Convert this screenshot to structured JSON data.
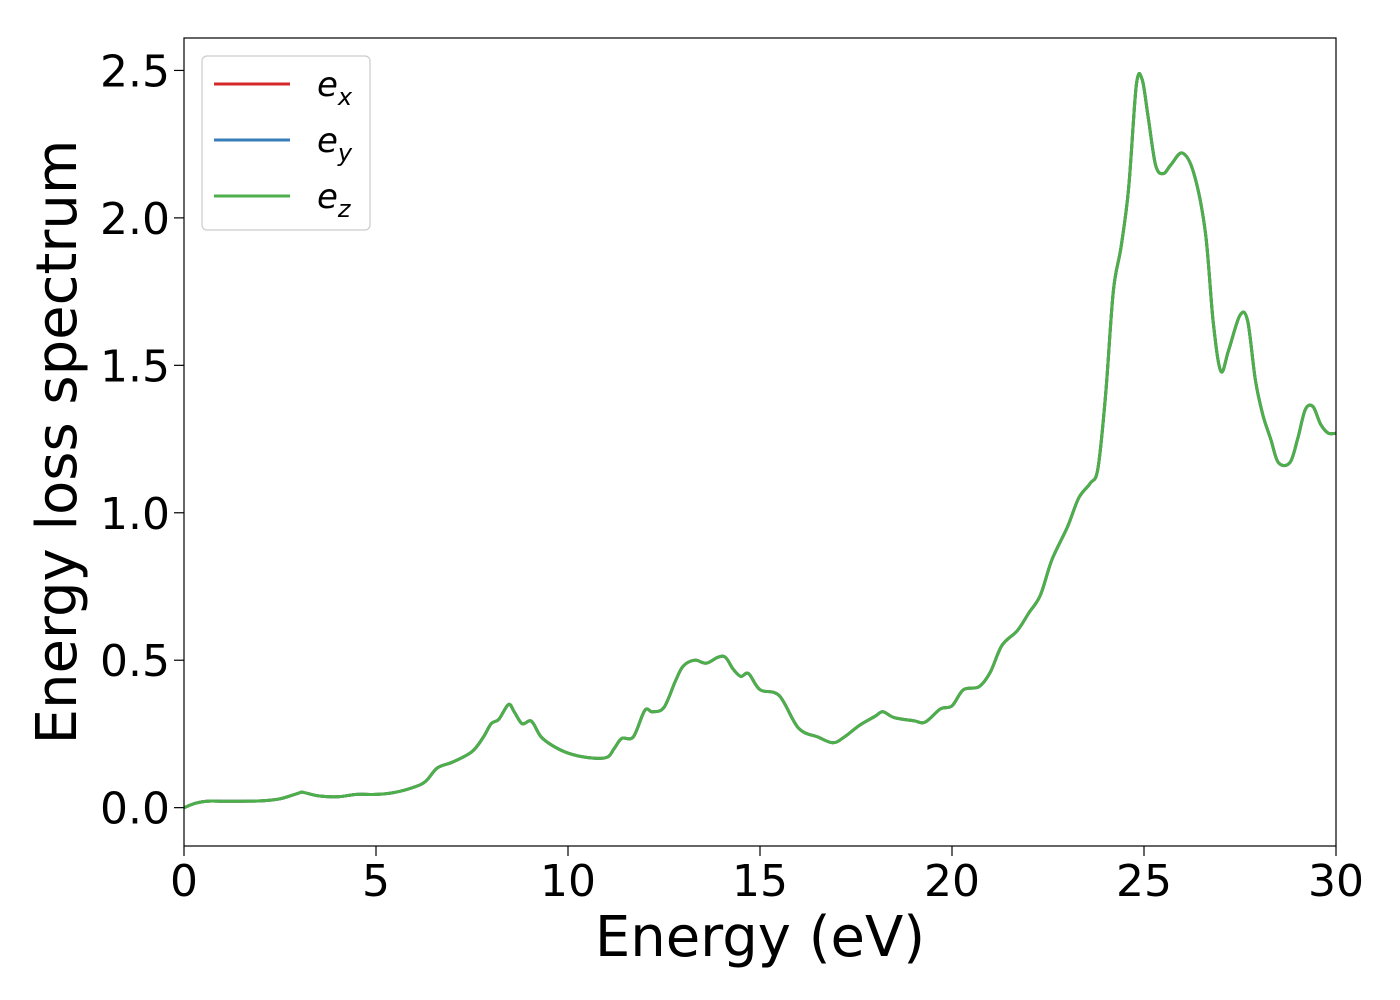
{
  "chart_data": {
    "type": "line",
    "title": "",
    "xlabel": "Energy (eV)",
    "ylabel": "Energy loss spectrum",
    "xlim": [
      0,
      30
    ],
    "ylim": [
      -0.13,
      2.61
    ],
    "xticks": [
      0,
      5,
      10,
      15,
      20,
      25,
      30
    ],
    "xtick_labels": [
      "0",
      "5",
      "10",
      "15",
      "20",
      "25",
      "30"
    ],
    "yticks": [
      0.0,
      0.5,
      1.0,
      1.5,
      2.0,
      2.5
    ],
    "ytick_labels": [
      "0.0",
      "0.5",
      "1.0",
      "1.5",
      "2.0",
      "2.5"
    ],
    "grid": false,
    "legend_position": "top-left",
    "series": [
      {
        "name": "e_x",
        "label_base": "e",
        "label_sub": "x",
        "color": "#d62728",
        "x": [
          0,
          0.3,
          0.6,
          1.0,
          1.5,
          2.0,
          2.5,
          3.0,
          3.1,
          3.5,
          4.0,
          4.5,
          5.0,
          5.5,
          6.0,
          6.3,
          6.6,
          7.0,
          7.5,
          7.8,
          8.0,
          8.2,
          8.45,
          8.6,
          8.8,
          9.0,
          9.1,
          9.3,
          9.6,
          10.0,
          10.5,
          11.0,
          11.2,
          11.4,
          11.7,
          12.0,
          12.2,
          12.5,
          12.8,
          13.0,
          13.3,
          13.6,
          13.9,
          14.1,
          14.3,
          14.5,
          14.7,
          15.0,
          15.5,
          16.0,
          16.5,
          16.9,
          17.2,
          17.6,
          18.0,
          18.2,
          18.5,
          19.0,
          19.3,
          19.7,
          20.0,
          20.3,
          20.7,
          21.0,
          21.3,
          21.7,
          22.0,
          22.3,
          22.6,
          23.0,
          23.3,
          23.6,
          23.8,
          24.0,
          24.2,
          24.4,
          24.6,
          24.8,
          24.95,
          25.1,
          25.3,
          25.5,
          25.7,
          26.0,
          26.3,
          26.6,
          26.8,
          27.0,
          27.2,
          27.5,
          27.7,
          27.9,
          28.1,
          28.3,
          28.5,
          28.8,
          29.0,
          29.2,
          29.4,
          29.6,
          29.8,
          30.0
        ],
        "y": [
          0.0,
          0.015,
          0.022,
          0.022,
          0.022,
          0.023,
          0.03,
          0.05,
          0.052,
          0.04,
          0.037,
          0.045,
          0.045,
          0.052,
          0.07,
          0.09,
          0.135,
          0.155,
          0.19,
          0.24,
          0.285,
          0.3,
          0.35,
          0.325,
          0.285,
          0.295,
          0.285,
          0.24,
          0.21,
          0.185,
          0.17,
          0.17,
          0.2,
          0.235,
          0.24,
          0.33,
          0.325,
          0.34,
          0.43,
          0.48,
          0.5,
          0.49,
          0.51,
          0.51,
          0.47,
          0.445,
          0.455,
          0.4,
          0.38,
          0.27,
          0.24,
          0.22,
          0.24,
          0.28,
          0.31,
          0.325,
          0.305,
          0.295,
          0.29,
          0.335,
          0.345,
          0.4,
          0.41,
          0.46,
          0.55,
          0.6,
          0.66,
          0.72,
          0.84,
          0.95,
          1.05,
          1.1,
          1.15,
          1.4,
          1.75,
          1.9,
          2.1,
          2.45,
          2.47,
          2.35,
          2.18,
          2.15,
          2.18,
          2.22,
          2.15,
          1.95,
          1.65,
          1.48,
          1.55,
          1.67,
          1.65,
          1.45,
          1.33,
          1.25,
          1.17,
          1.17,
          1.25,
          1.35,
          1.36,
          1.3,
          1.27,
          1.27
        ]
      },
      {
        "name": "e_y",
        "label_base": "e",
        "label_sub": "y",
        "color": "#377eb8",
        "x": [
          0,
          0.3,
          0.6,
          1.0,
          1.5,
          2.0,
          2.5,
          3.0,
          3.1,
          3.5,
          4.0,
          4.5,
          5.0,
          5.5,
          6.0,
          6.3,
          6.6,
          7.0,
          7.5,
          7.8,
          8.0,
          8.2,
          8.45,
          8.6,
          8.8,
          9.0,
          9.1,
          9.3,
          9.6,
          10.0,
          10.5,
          11.0,
          11.2,
          11.4,
          11.7,
          12.0,
          12.2,
          12.5,
          12.8,
          13.0,
          13.3,
          13.6,
          13.9,
          14.1,
          14.3,
          14.5,
          14.7,
          15.0,
          15.5,
          16.0,
          16.5,
          16.9,
          17.2,
          17.6,
          18.0,
          18.2,
          18.5,
          19.0,
          19.3,
          19.7,
          20.0,
          20.3,
          20.7,
          21.0,
          21.3,
          21.7,
          22.0,
          22.3,
          22.6,
          23.0,
          23.3,
          23.6,
          23.8,
          24.0,
          24.2,
          24.4,
          24.6,
          24.8,
          24.95,
          25.1,
          25.3,
          25.5,
          25.7,
          26.0,
          26.3,
          26.6,
          26.8,
          27.0,
          27.2,
          27.5,
          27.7,
          27.9,
          28.1,
          28.3,
          28.5,
          28.8,
          29.0,
          29.2,
          29.4,
          29.6,
          29.8,
          30.0
        ],
        "y": [
          0.0,
          0.015,
          0.022,
          0.022,
          0.022,
          0.023,
          0.03,
          0.05,
          0.052,
          0.04,
          0.037,
          0.045,
          0.045,
          0.052,
          0.07,
          0.09,
          0.135,
          0.155,
          0.19,
          0.24,
          0.285,
          0.3,
          0.35,
          0.325,
          0.285,
          0.295,
          0.285,
          0.24,
          0.21,
          0.185,
          0.17,
          0.17,
          0.2,
          0.235,
          0.24,
          0.33,
          0.325,
          0.34,
          0.43,
          0.48,
          0.5,
          0.49,
          0.51,
          0.51,
          0.47,
          0.445,
          0.455,
          0.4,
          0.38,
          0.27,
          0.24,
          0.22,
          0.24,
          0.28,
          0.31,
          0.325,
          0.305,
          0.295,
          0.29,
          0.335,
          0.345,
          0.4,
          0.41,
          0.46,
          0.55,
          0.6,
          0.66,
          0.72,
          0.84,
          0.95,
          1.05,
          1.1,
          1.15,
          1.4,
          1.75,
          1.9,
          2.1,
          2.45,
          2.47,
          2.35,
          2.18,
          2.15,
          2.18,
          2.22,
          2.15,
          1.95,
          1.65,
          1.48,
          1.55,
          1.67,
          1.65,
          1.45,
          1.33,
          1.25,
          1.17,
          1.17,
          1.25,
          1.35,
          1.36,
          1.3,
          1.27,
          1.27
        ]
      },
      {
        "name": "e_z",
        "label_base": "e",
        "label_sub": "z",
        "color": "#4daf4a",
        "x": [
          0,
          0.3,
          0.6,
          1.0,
          1.5,
          2.0,
          2.5,
          3.0,
          3.1,
          3.5,
          4.0,
          4.5,
          5.0,
          5.5,
          6.0,
          6.3,
          6.6,
          7.0,
          7.5,
          7.8,
          8.0,
          8.2,
          8.45,
          8.6,
          8.8,
          9.0,
          9.1,
          9.3,
          9.6,
          10.0,
          10.5,
          11.0,
          11.2,
          11.4,
          11.7,
          12.0,
          12.2,
          12.5,
          12.8,
          13.0,
          13.3,
          13.6,
          13.9,
          14.1,
          14.3,
          14.5,
          14.7,
          15.0,
          15.5,
          16.0,
          16.5,
          16.9,
          17.2,
          17.6,
          18.0,
          18.2,
          18.5,
          19.0,
          19.3,
          19.7,
          20.0,
          20.3,
          20.7,
          21.0,
          21.3,
          21.7,
          22.0,
          22.3,
          22.6,
          23.0,
          23.3,
          23.6,
          23.8,
          24.0,
          24.2,
          24.4,
          24.6,
          24.8,
          24.95,
          25.1,
          25.3,
          25.5,
          25.7,
          26.0,
          26.3,
          26.6,
          26.8,
          27.0,
          27.2,
          27.5,
          27.7,
          27.9,
          28.1,
          28.3,
          28.5,
          28.8,
          29.0,
          29.2,
          29.4,
          29.6,
          29.8,
          30.0
        ],
        "y": [
          0.0,
          0.015,
          0.022,
          0.022,
          0.022,
          0.023,
          0.03,
          0.05,
          0.052,
          0.04,
          0.037,
          0.045,
          0.045,
          0.052,
          0.07,
          0.09,
          0.135,
          0.155,
          0.19,
          0.24,
          0.285,
          0.3,
          0.35,
          0.325,
          0.285,
          0.295,
          0.285,
          0.24,
          0.21,
          0.185,
          0.17,
          0.17,
          0.2,
          0.235,
          0.24,
          0.33,
          0.325,
          0.34,
          0.43,
          0.48,
          0.5,
          0.49,
          0.51,
          0.51,
          0.47,
          0.445,
          0.455,
          0.4,
          0.38,
          0.27,
          0.24,
          0.22,
          0.24,
          0.28,
          0.31,
          0.325,
          0.305,
          0.295,
          0.29,
          0.335,
          0.345,
          0.4,
          0.41,
          0.46,
          0.55,
          0.6,
          0.66,
          0.72,
          0.84,
          0.95,
          1.05,
          1.1,
          1.15,
          1.4,
          1.75,
          1.9,
          2.1,
          2.45,
          2.47,
          2.35,
          2.18,
          2.15,
          2.18,
          2.22,
          2.15,
          1.95,
          1.65,
          1.48,
          1.55,
          1.67,
          1.65,
          1.45,
          1.33,
          1.25,
          1.17,
          1.17,
          1.25,
          1.35,
          1.36,
          1.3,
          1.27,
          1.27
        ]
      }
    ]
  }
}
